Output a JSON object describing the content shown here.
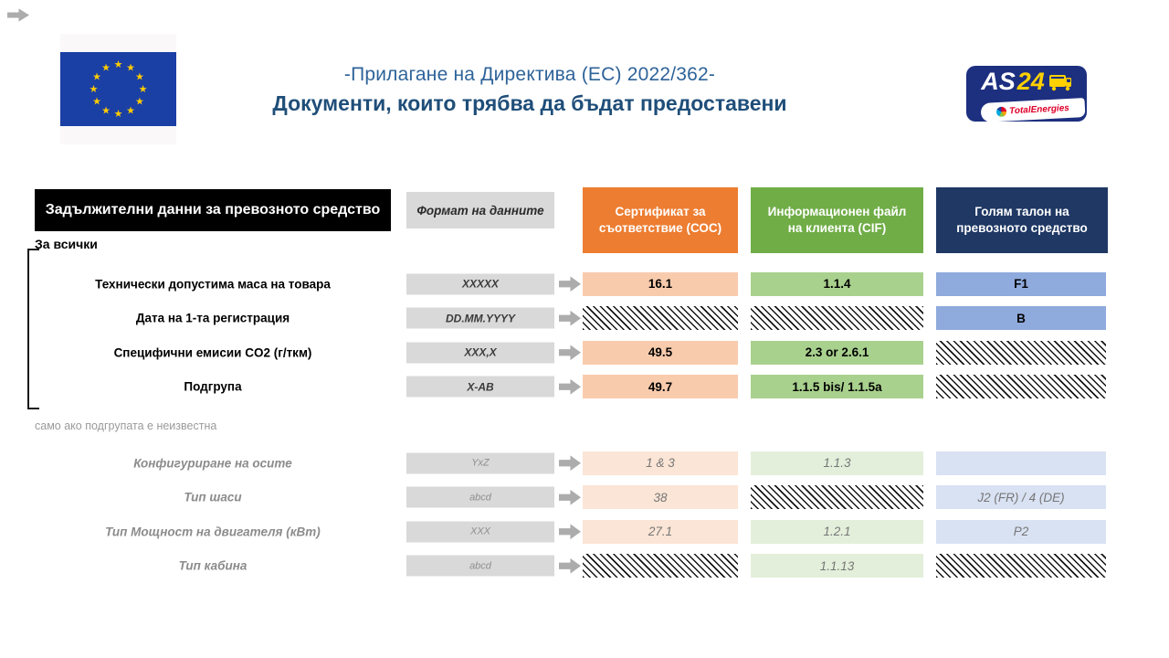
{
  "header": {
    "title_line1": "-Прилагане на Директива (ЕС) 2022/362-",
    "title_line2": "Документи, които трябва да бъдат предоставени"
  },
  "logo": {
    "as": "AS",
    "num": "24",
    "brand": "TotalEnergies"
  },
  "icons": {
    "corner_arrow": "right-block-arrow",
    "row_arrow": "right-block-arrow",
    "eu_flag": "eu-flag-12-stars",
    "truck": "truck-icon"
  },
  "palette": {
    "coc": "#ED7D31",
    "cif": "#70AD47",
    "reg": "#1F3864",
    "coc_cell": "#F8CBAD",
    "cif_cell": "#A9D18E",
    "reg_cell": "#8FAADC",
    "coc_cell_muted": "#FBE5D6",
    "cif_cell_muted": "#E3EFDA",
    "reg_cell_muted": "#D9E2F3",
    "header_black": "#000000",
    "format_bg": "#D9D9D9",
    "title_blue": "#2E6399",
    "title_dark": "#1F4E79",
    "eu_blue": "#1A3FA5",
    "star_yellow": "#FFCC00",
    "as24_blue": "#1D2F7F",
    "as24_yellow": "#FFD100",
    "total_red": "#E1002A",
    "muted_text": "#8C8C8C",
    "arrow_gray": "#ACACAC"
  },
  "table": {
    "row_header": "Задължителни данни за превозното средство",
    "format_header": "Формат  на данните",
    "columns": [
      {
        "label": "Сертификат за съответствие (СОС)"
      },
      {
        "label": "Информационен файл на клиента (CIF)"
      },
      {
        "label": "Голям талон на превозното средство"
      }
    ],
    "sections": [
      {
        "label": "За всички",
        "rows": [
          {
            "label": "Технически допустима маса на товара",
            "format": "XXXXX",
            "cells": [
              {
                "t": "value",
                "v": "16.1"
              },
              {
                "t": "value",
                "v": "1.1.4"
              },
              {
                "t": "value",
                "v": "F1"
              }
            ]
          },
          {
            "label": "Дата на 1-та регистрация",
            "format": "DD.MM.YYYY",
            "cells": [
              {
                "t": "hatch"
              },
              {
                "t": "hatch"
              },
              {
                "t": "value",
                "v": "B"
              }
            ]
          },
          {
            "label": "Специфични емисии CO2 (г/ткм)",
            "format": "XXX,X",
            "cells": [
              {
                "t": "value",
                "v": "49.5"
              },
              {
                "t": "value",
                "v": "2.3 or 2.6.1"
              },
              {
                "t": "hatch"
              }
            ]
          },
          {
            "label": "Подгрупа",
            "format": "X-AB",
            "cells": [
              {
                "t": "value",
                "v": "49.7"
              },
              {
                "t": "value",
                "v": "1.1.5 bis/ 1.1.5a"
              },
              {
                "t": "hatch"
              }
            ]
          }
        ]
      },
      {
        "label": "само ако подгрупата е неизвестна",
        "rows": [
          {
            "label": "Конфигуриране  на осите",
            "format": "YxZ",
            "cells": [
              {
                "t": "value",
                "v": "1 & 3"
              },
              {
                "t": "value",
                "v": "1.1.3"
              },
              {
                "t": "empty"
              }
            ]
          },
          {
            "label": "Тип шаси",
            "format": "abcd",
            "cells": [
              {
                "t": "value",
                "v": "38"
              },
              {
                "t": "hatch"
              },
              {
                "t": "value",
                "v": "J2 (FR) / 4 (DE)"
              }
            ]
          },
          {
            "label": "Тип Мощност  на двигателя  (кВт)",
            "format": "XXX",
            "cells": [
              {
                "t": "value",
                "v": "27.1"
              },
              {
                "t": "value",
                "v": "1.2.1"
              },
              {
                "t": "value",
                "v": "P2"
              }
            ]
          },
          {
            "label": "Тип кабина",
            "format": "abcd",
            "cells": [
              {
                "t": "hatch"
              },
              {
                "t": "value",
                "v": "1.1.13"
              },
              {
                "t": "hatch"
              }
            ]
          }
        ]
      }
    ]
  }
}
